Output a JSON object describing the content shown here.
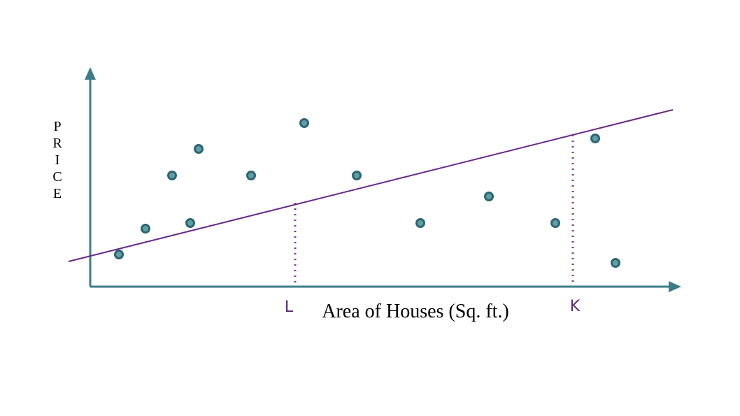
{
  "y_axis_label": "PRICE",
  "x_axis_label": "Area of Houses (Sq. ft.)",
  "markers": [
    {
      "label": "L"
    },
    {
      "label": "K"
    }
  ]
}
